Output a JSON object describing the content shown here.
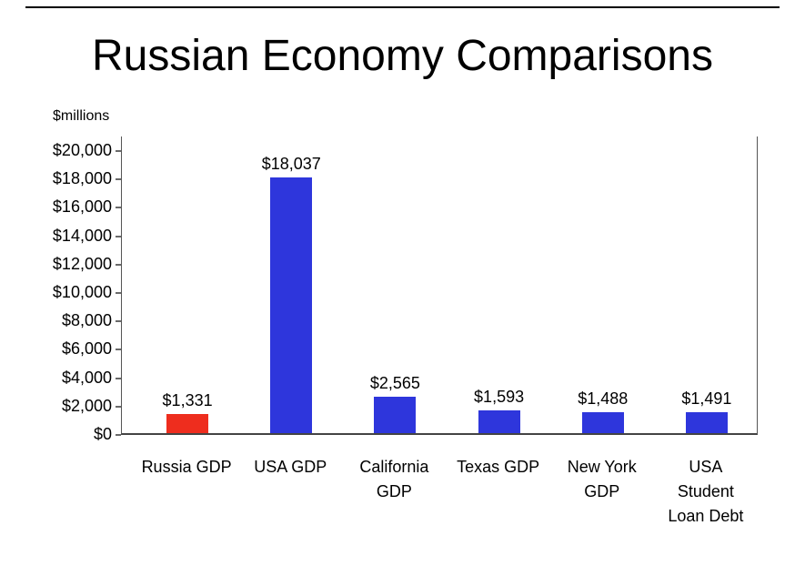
{
  "slide": {
    "title": "Russian Economy Comparisons"
  },
  "chart_data": {
    "type": "bar",
    "title": "Russian Economy Comparisons",
    "ylabel": "$millions",
    "xlabel": "",
    "categories": [
      "Russia GDP",
      "USA GDP",
      "California\nGDP",
      "Texas GDP",
      "New York\nGDP",
      "USA\nStudent\nLoan Debt"
    ],
    "values": [
      1331,
      18037,
      2565,
      1593,
      1488,
      1491
    ],
    "value_labels": [
      "$1,331",
      "$18,037",
      "$2,565",
      "$1,593",
      "$1,488",
      "$1,491"
    ],
    "bar_colors": [
      "#ee2d1e",
      "#2e36dc",
      "#2e36dc",
      "#2e36dc",
      "#2e36dc",
      "#2e36dc"
    ],
    "ylim": [
      0,
      20000
    ],
    "ytick_step": 2000,
    "ytick_labels": [
      "$0",
      "$2,000",
      "$4,000",
      "$6,000",
      "$8,000",
      "$10,000",
      "$12,000",
      "$14,000",
      "$16,000",
      "$18,000",
      "$20,000"
    ],
    "grid": false,
    "legend": "none"
  },
  "colors": {
    "bar_red": "#ee2d1e",
    "bar_blue": "#2e36dc",
    "axis": "#555555",
    "text": "#000000",
    "background": "#ffffff"
  }
}
